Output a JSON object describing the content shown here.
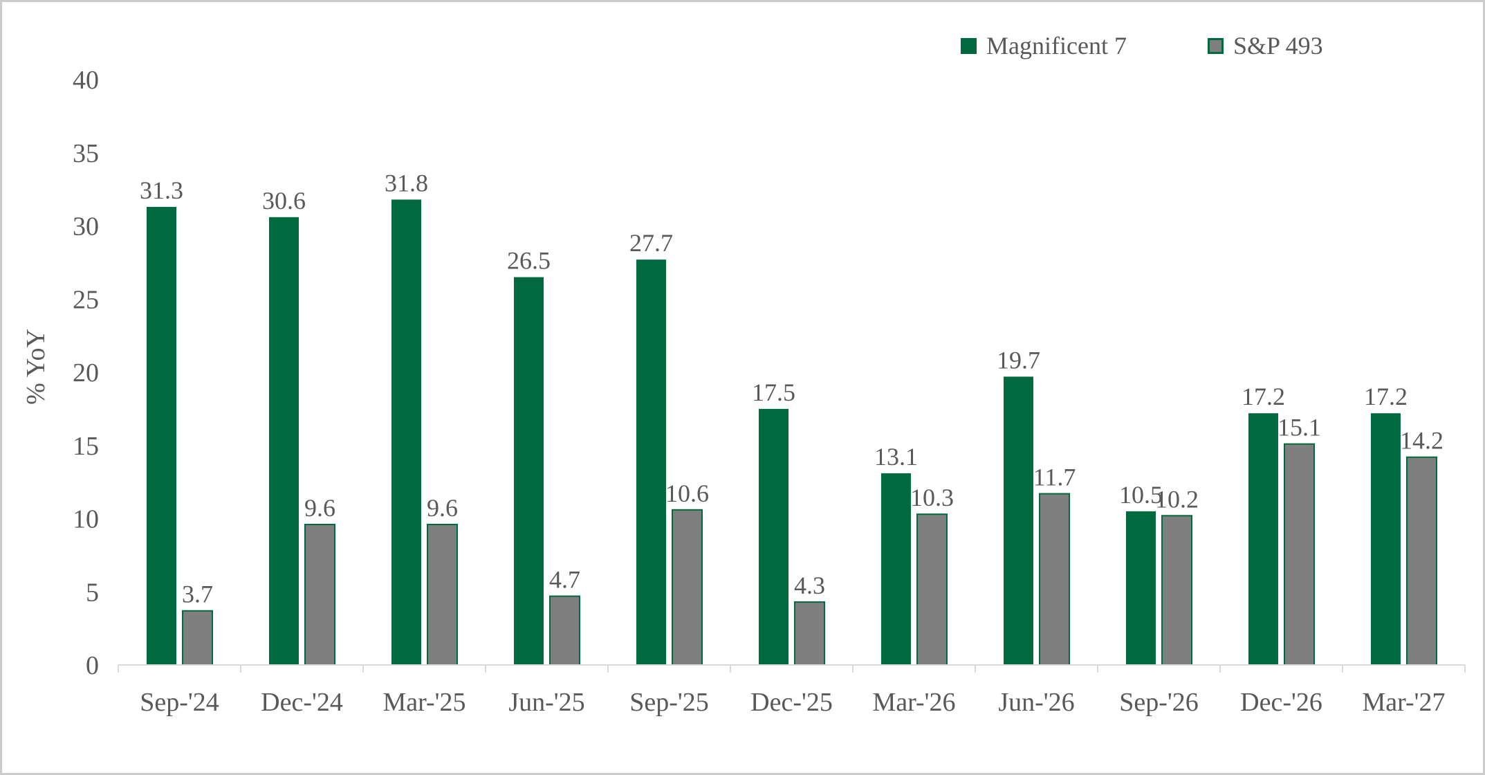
{
  "chart_data": {
    "type": "bar",
    "title": "",
    "ylabel": "% YoY",
    "xlabel": "",
    "ylim": [
      0,
      40
    ],
    "yticks": [
      0,
      5,
      10,
      15,
      20,
      25,
      30,
      35,
      40
    ],
    "grid": false,
    "data_labels": true,
    "legend_position": "top-right",
    "categories": [
      "Sep-'24",
      "Dec-'24",
      "Mar-'25",
      "Jun-'25",
      "Sep-'25",
      "Dec-'25",
      "Mar-'26",
      "Jun-'26",
      "Sep-'26",
      "Dec-'26",
      "Mar-'27"
    ],
    "series": [
      {
        "name": "Magnificent 7",
        "color": "#00693E",
        "border_color": "#00693E",
        "values": [
          31.3,
          30.6,
          31.8,
          26.5,
          27.7,
          17.5,
          13.1,
          19.7,
          10.5,
          17.2,
          17.2
        ]
      },
      {
        "name": "S&P 493",
        "color": "#7F7F7F",
        "border_color": "#00693E",
        "values": [
          3.7,
          9.6,
          9.6,
          4.7,
          10.6,
          4.3,
          10.3,
          11.7,
          10.2,
          15.1,
          14.2
        ]
      }
    ],
    "colors": {
      "text": "#595959",
      "axis_line": "#D9D9D9",
      "frame_border": "#CCCCCC",
      "background": "#FFFFFF"
    }
  }
}
